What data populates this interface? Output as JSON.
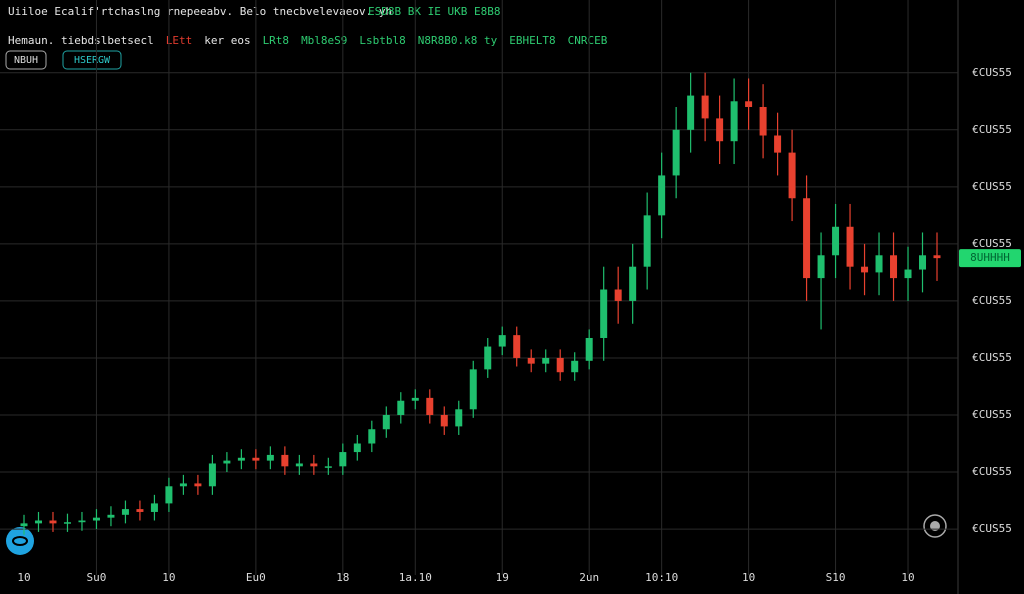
{
  "chart_data": {
    "type": "candlestick",
    "title": "Uiiloe Ecalif'rtchaslng rnepeeabv. Belo tnecbvelevaeov. yh",
    "subtitle": "ESD8B BK IE UKB E8B8",
    "indicators": [
      {
        "text": "Hemaun. tiebdslbetsecl",
        "color": "#e6e6e6"
      },
      {
        "text": "LEtt",
        "color": "#e23b2e"
      },
      {
        "text": "ker eos",
        "color": "#e6e6e6"
      },
      {
        "text": "LRt8",
        "color": "#2ecc71"
      },
      {
        "text": "Mbl8eS9",
        "color": "#2ecc71"
      },
      {
        "text": "Lsbtbl8",
        "color": "#2ecc71"
      },
      {
        "text": "N8R8B0.k8 ty",
        "color": "#2ecc71"
      },
      {
        "text": "EBHELT8",
        "color": "#2ecc71"
      },
      {
        "text": "CNRCEB",
        "color": "#2ecc71"
      }
    ],
    "buttons": [
      "NBUH",
      "HSERGW"
    ],
    "last_price_label": "8UHHHH",
    "up_color": "#1fbf6e",
    "down_color": "#e8412f",
    "grid": true,
    "ylim": [
      -0.63,
      8.89
    ],
    "yticks": [
      {
        "value": 8,
        "label": "€CUS55"
      },
      {
        "value": 7,
        "label": "€CUS55"
      },
      {
        "value": 6,
        "label": "€CUS55"
      },
      {
        "value": 5,
        "label": "€CUS55"
      },
      {
        "value": 4,
        "label": "€CUS55"
      },
      {
        "value": 3,
        "label": "€CUS55"
      },
      {
        "value": 2,
        "label": "€CUS55"
      },
      {
        "value": 1,
        "label": "€CUS55"
      },
      {
        "value": 0,
        "label": "€CUS55"
      }
    ],
    "categories": [
      "10",
      null,
      null,
      null,
      null,
      "Su0",
      null,
      null,
      null,
      null,
      "10",
      null,
      null,
      null,
      null,
      null,
      "Eu0",
      null,
      null,
      null,
      null,
      null,
      "18",
      null,
      null,
      null,
      null,
      "1a.10",
      null,
      null,
      null,
      null,
      null,
      "19",
      null,
      null,
      null,
      null,
      null,
      "2un",
      null,
      null,
      null,
      null,
      "10:10",
      null,
      null,
      null,
      null,
      null,
      "10",
      null,
      null,
      null,
      null,
      null,
      "S10",
      null,
      null,
      null,
      null,
      "10",
      null,
      null
    ],
    "open": [
      0.05,
      0.1,
      0.15,
      0.1,
      0.12,
      0.15,
      0.2,
      0.25,
      0.35,
      0.3,
      0.45,
      0.75,
      0.8,
      0.75,
      1.15,
      1.2,
      1.25,
      1.2,
      1.3,
      1.1,
      1.15,
      1.1,
      1.1,
      1.35,
      1.5,
      1.75,
      2.0,
      2.25,
      2.3,
      2.0,
      1.8,
      2.1,
      2.8,
      3.2,
      3.4,
      3.0,
      2.9,
      3.0,
      2.75,
      2.95,
      3.35,
      4.2,
      4.0,
      4.6,
      5.5,
      6.2,
      7.0,
      7.6,
      7.2,
      6.8,
      7.5,
      7.4,
      6.9,
      6.6,
      5.8,
      4.4,
      4.8,
      5.3,
      4.6,
      4.5,
      4.8,
      4.4,
      4.55,
      4.8
    ],
    "high": [
      0.25,
      0.3,
      0.3,
      0.27,
      0.3,
      0.35,
      0.4,
      0.5,
      0.5,
      0.6,
      0.9,
      0.95,
      0.95,
      1.3,
      1.35,
      1.4,
      1.4,
      1.45,
      1.45,
      1.3,
      1.3,
      1.25,
      1.5,
      1.65,
      1.9,
      2.15,
      2.4,
      2.45,
      2.45,
      2.15,
      2.25,
      2.95,
      3.35,
      3.55,
      3.55,
      3.15,
      3.15,
      3.15,
      3.1,
      3.5,
      4.6,
      4.6,
      5.0,
      5.9,
      6.6,
      7.4,
      8.0,
      8.0,
      7.6,
      7.9,
      7.9,
      7.8,
      7.3,
      7.0,
      6.2,
      5.2,
      5.7,
      5.7,
      5.0,
      5.2,
      5.2,
      4.95,
      5.2,
      5.2
    ],
    "low": [
      -0.1,
      -0.05,
      -0.05,
      -0.05,
      -0.03,
      0,
      0.05,
      0.1,
      0.15,
      0.15,
      0.3,
      0.6,
      0.6,
      0.6,
      1.0,
      1.05,
      1.05,
      1.05,
      0.95,
      0.95,
      0.95,
      0.95,
      0.95,
      1.2,
      1.35,
      1.6,
      1.85,
      2.1,
      1.85,
      1.65,
      1.65,
      1.95,
      2.65,
      3.05,
      2.85,
      2.75,
      2.75,
      2.6,
      2.6,
      2.8,
      2.95,
      3.6,
      3.6,
      4.2,
      5.1,
      5.8,
      6.6,
      6.8,
      6.4,
      6.4,
      7.0,
      6.5,
      6.2,
      5.4,
      4.0,
      3.5,
      4.4,
      4.2,
      4.1,
      4.1,
      4.0,
      4.0,
      4.15,
      4.35
    ],
    "close": [
      0.1,
      0.15,
      0.1,
      0.12,
      0.15,
      0.2,
      0.25,
      0.35,
      0.3,
      0.45,
      0.75,
      0.8,
      0.75,
      1.15,
      1.2,
      1.25,
      1.2,
      1.3,
      1.1,
      1.15,
      1.1,
      1.1,
      1.35,
      1.5,
      1.75,
      2.0,
      2.25,
      2.3,
      2.0,
      1.8,
      2.1,
      2.8,
      3.2,
      3.4,
      3.0,
      2.9,
      3.0,
      2.75,
      2.95,
      3.35,
      4.2,
      4.0,
      4.6,
      5.5,
      6.2,
      7.0,
      7.6,
      7.2,
      6.8,
      7.5,
      7.4,
      6.9,
      6.6,
      5.8,
      4.4,
      4.8,
      5.3,
      4.6,
      4.5,
      4.8,
      4.4,
      4.55,
      4.8,
      4.75
    ]
  }
}
